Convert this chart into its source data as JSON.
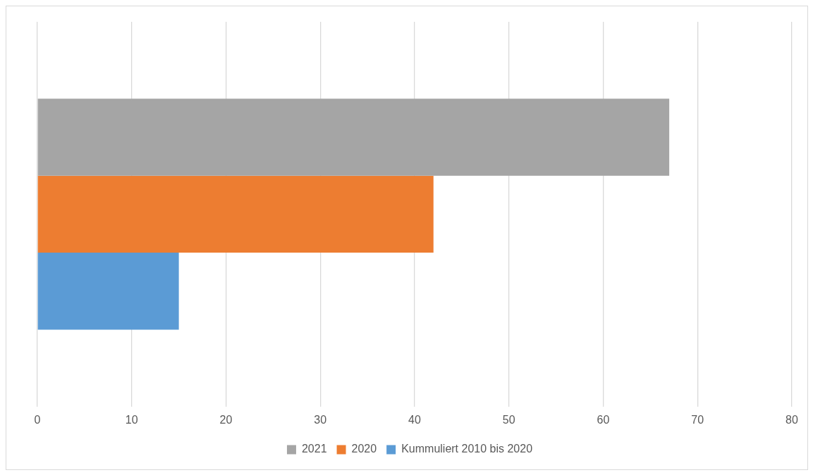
{
  "chart_data": {
    "type": "bar",
    "orientation": "horizontal",
    "categories": [
      null
    ],
    "series": [
      {
        "name": "2021",
        "color": "#a5a5a5",
        "values": [
          67
        ]
      },
      {
        "name": "2020",
        "color": "#ed7d31",
        "values": [
          42
        ]
      },
      {
        "name": "Kummuliert 2010 bis 2020",
        "color": "#5b9bd5",
        "values": [
          15
        ]
      }
    ],
    "xlim": [
      0,
      80
    ],
    "xticks": [
      0,
      10,
      20,
      30,
      40,
      50,
      60,
      70,
      80
    ],
    "grid": "x",
    "legend": "bottom"
  }
}
